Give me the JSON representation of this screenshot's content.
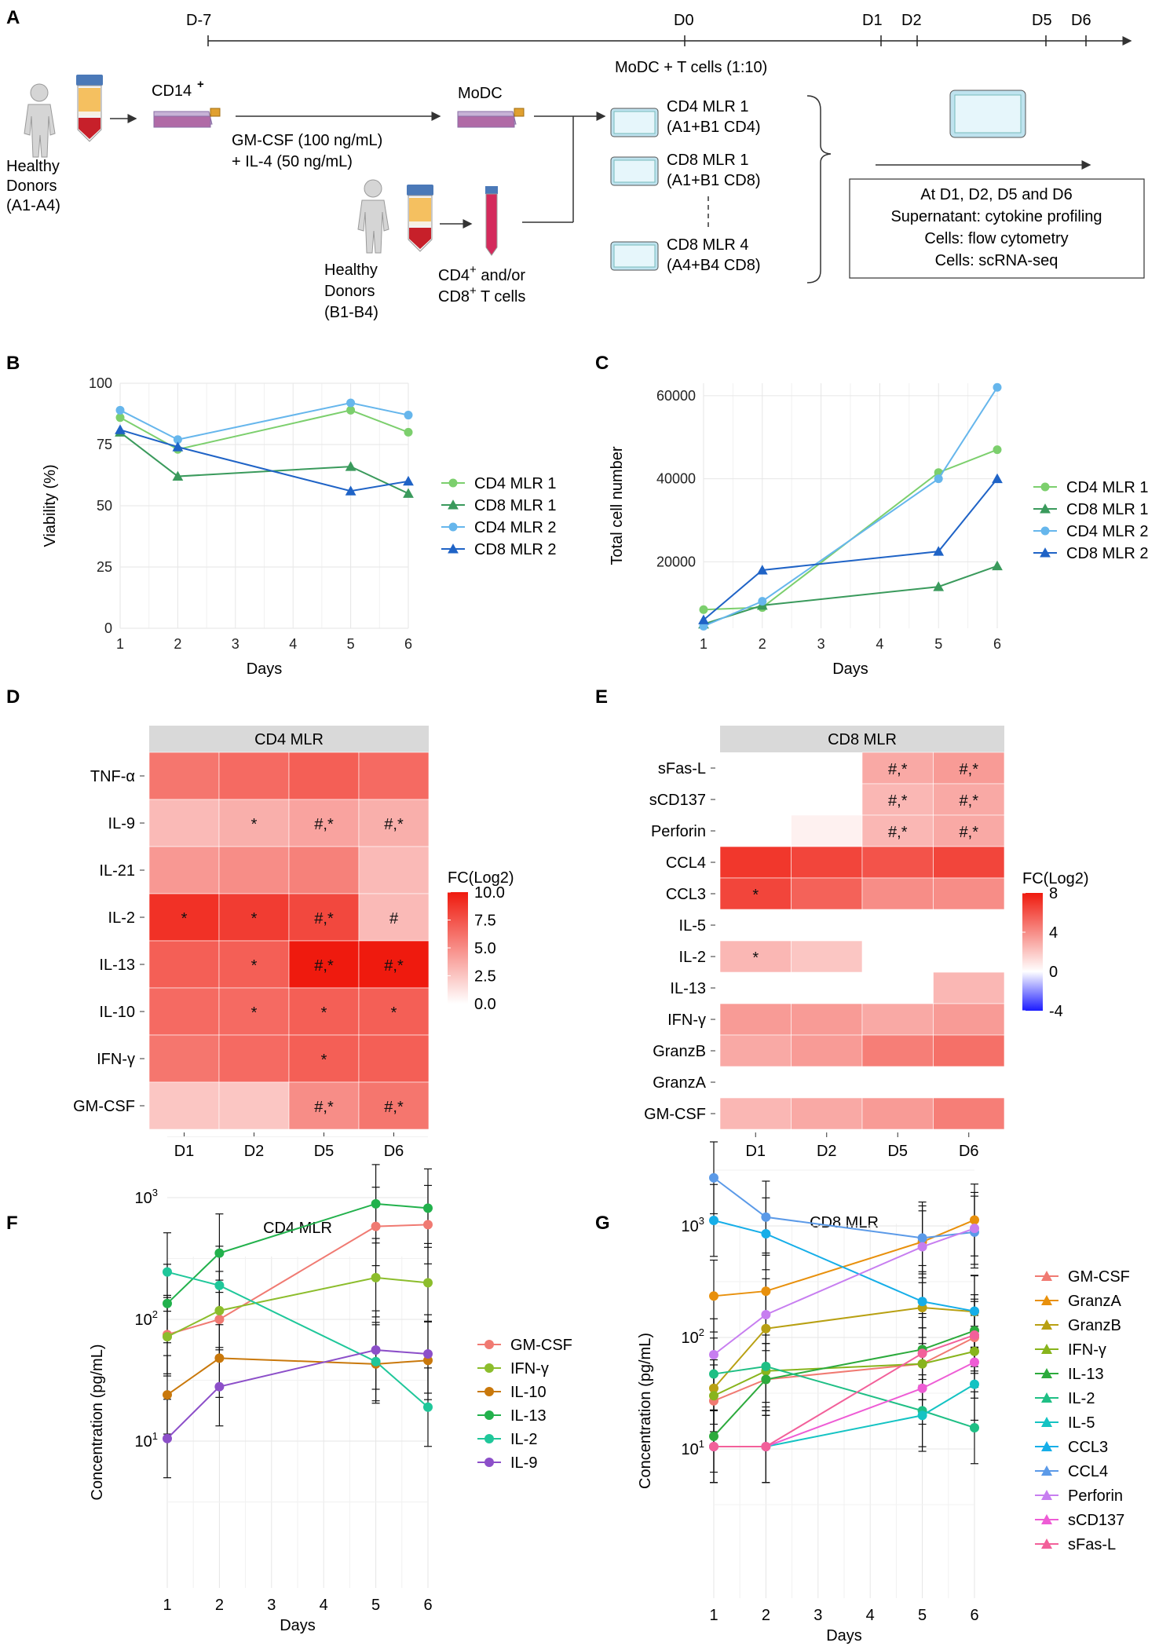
{
  "panels": {
    "A": "A",
    "B": "B",
    "C": "C",
    "D": "D",
    "E": "E",
    "F": "F",
    "G": "G"
  },
  "timeline": {
    "days": [
      "D-7",
      "D0",
      "D1",
      "D2",
      "D5",
      "D6"
    ],
    "coculture": "MoDC + T cells (1:10)"
  },
  "schematic": {
    "donors_a_line1": "Healthy",
    "donors_a_line2": "Donors",
    "donors_a_line3": "(A1-A4)",
    "cd14": "CD14",
    "cd14_sup": "+",
    "gmcsf": "GM-CSF (100 ng/mL)",
    "il4": "+ IL-4 (50 ng/mL)",
    "modc": "MoDC",
    "donors_b_line1": "Healthy",
    "donors_b_line2": "Donors",
    "donors_b_line3": "(B1-B4)",
    "tcells_line1": "CD4",
    "tcells_line1_rest": " and/or",
    "tcells_line2": "CD8",
    "tcells_line2_rest": " T cells",
    "sup_plus": "+",
    "mlr1_line1": "CD4 MLR 1",
    "mlr1_line2": "(A1+B1 CD4)",
    "mlr2_line1": "CD8 MLR 1",
    "mlr2_line2": "(A1+B1 CD8)",
    "mlr3_line1": "CD8 MLR 4",
    "mlr3_line2": "(A4+B4 CD8)",
    "box_lines": [
      "At D1, D2, D5 and D6",
      "Supernatant: cytokine profiling",
      "Cells: flow cytometry",
      "Cells: scRNA-seq"
    ]
  },
  "legend_bc": [
    "CD4 MLR 1",
    "CD8 MLR 1",
    "CD4 MLR 2",
    "CD8 MLR 2"
  ],
  "chart_data": [
    {
      "id": "B",
      "type": "line",
      "title": "",
      "xlabel": "Days",
      "ylabel": "Viability (%)",
      "x": [
        1,
        2,
        5,
        6
      ],
      "xlim": [
        1,
        6
      ],
      "xticks": [
        "1",
        "2",
        "3",
        "4",
        "5",
        "6"
      ],
      "ylim": [
        0,
        100
      ],
      "yticks": [
        "0",
        "25",
        "50",
        "75",
        "100"
      ],
      "series": [
        {
          "name": "CD4 MLR 1",
          "marker": "circle",
          "color": "#7ccf6d",
          "values": [
            86,
            73,
            89,
            80
          ]
        },
        {
          "name": "CD8 MLR 1",
          "marker": "triangle",
          "color": "#3a9a5c",
          "values": [
            80,
            62,
            66,
            55
          ]
        },
        {
          "name": "CD4 MLR 2",
          "marker": "circle",
          "color": "#66b6ec",
          "values": [
            89,
            77,
            92,
            87
          ]
        },
        {
          "name": "CD8 MLR 2",
          "marker": "triangle",
          "color": "#1f63c6",
          "values": [
            81,
            74,
            56,
            60
          ]
        }
      ],
      "legend": "right"
    },
    {
      "id": "C",
      "type": "line",
      "title": "",
      "xlabel": "Days",
      "ylabel": "Total cell number",
      "x": [
        1,
        2,
        5,
        6
      ],
      "xlim": [
        1,
        6
      ],
      "xticks": [
        "1",
        "2",
        "3",
        "4",
        "5",
        "6"
      ],
      "ylim": [
        4000,
        63000
      ],
      "yticks": [
        "20000",
        "40000",
        "60000"
      ],
      "series": [
        {
          "name": "CD4 MLR 1",
          "marker": "circle",
          "color": "#7ccf6d",
          "values": [
            8500,
            9000,
            41500,
            47000
          ]
        },
        {
          "name": "CD8 MLR 1",
          "marker": "triangle",
          "color": "#3a9a5c",
          "values": [
            5000,
            9500,
            14000,
            19000
          ]
        },
        {
          "name": "CD4 MLR 2",
          "marker": "circle",
          "color": "#66b6ec",
          "values": [
            4500,
            10500,
            40000,
            62000
          ]
        },
        {
          "name": "CD8 MLR 2",
          "marker": "triangle",
          "color": "#1f63c6",
          "values": [
            6000,
            18000,
            22500,
            40000
          ]
        }
      ],
      "legend": "right"
    },
    {
      "id": "D",
      "type": "heatmap",
      "title": "CD4 MLR",
      "columns": [
        "D1",
        "D2",
        "D5",
        "D6"
      ],
      "rows": [
        "TNF-α",
        "IL-9",
        "IL-21",
        "IL-2",
        "IL-13",
        "IL-10",
        "IFN-γ",
        "GM-CSF"
      ],
      "values": [
        [
          6,
          6.5,
          7,
          6.5
        ],
        [
          3,
          3.5,
          4,
          3.5
        ],
        [
          4.5,
          5,
          5.5,
          3
        ],
        [
          9,
          8.5,
          8,
          3
        ],
        [
          7,
          7,
          10,
          10
        ],
        [
          6.5,
          6.5,
          7,
          7
        ],
        [
          6,
          6.5,
          7,
          7
        ],
        [
          2.5,
          2.5,
          5,
          6
        ]
      ],
      "labels": [
        [
          "",
          "",
          "",
          ""
        ],
        [
          "",
          "*",
          "#,*",
          "#,*"
        ],
        [
          "",
          "",
          "",
          ""
        ],
        [
          "*",
          "*",
          "#,*",
          "#"
        ],
        [
          "",
          "*",
          "#,*",
          "#,*"
        ],
        [
          "",
          "*",
          "*",
          "*"
        ],
        [
          "",
          "",
          "*",
          ""
        ],
        [
          "",
          "",
          "#,*",
          "#,*"
        ]
      ],
      "legend_title": "FC(Log2)",
      "scale": [
        0,
        10
      ],
      "legend_ticks": [
        "10.0",
        "7.5",
        "5.0",
        "2.5",
        "0.0"
      ]
    },
    {
      "id": "E",
      "type": "heatmap",
      "title": "CD8 MLR",
      "columns": [
        "D1",
        "D2",
        "D5",
        "D6"
      ],
      "rows": [
        "sFas-L",
        "sCD137",
        "Perforin",
        "CCL4",
        "CCL3",
        "IL-5",
        "IL-2",
        "IL-13",
        "IFN-γ",
        "GranzB",
        "GranzA",
        "GM-CSF"
      ],
      "values": [
        [
          null,
          null,
          3,
          3.5
        ],
        [
          null,
          null,
          2.5,
          3
        ],
        [
          null,
          0.5,
          2.5,
          3
        ],
        [
          7,
          6.5,
          6,
          6.5
        ],
        [
          6.5,
          5.5,
          4,
          4
        ],
        [
          null,
          null,
          null,
          null
        ],
        [
          2.5,
          2,
          null,
          null
        ],
        [
          null,
          null,
          null,
          2.5
        ],
        [
          3.5,
          3.5,
          3,
          3.5
        ],
        [
          3,
          3.5,
          4.5,
          5
        ],
        [
          null,
          null,
          null,
          null
        ],
        [
          2.5,
          3,
          3.5,
          4.5
        ]
      ],
      "labels": [
        [
          "",
          "",
          "#,*",
          "#,*"
        ],
        [
          "",
          "",
          "#,*",
          "#,*"
        ],
        [
          "",
          "",
          "#,*",
          "#,*"
        ],
        [
          "",
          "",
          "",
          ""
        ],
        [
          "*",
          "",
          "",
          ""
        ],
        [
          "",
          "",
          "",
          ""
        ],
        [
          "*",
          "",
          "",
          ""
        ],
        [
          "",
          "",
          "",
          ""
        ],
        [
          "",
          "",
          "",
          ""
        ],
        [
          "",
          "",
          "",
          ""
        ],
        [
          "",
          "",
          "",
          ""
        ],
        [
          "",
          "",
          "",
          ""
        ]
      ],
      "legend_title": "FC(Log2)",
      "scale": [
        -4,
        8
      ],
      "legend_ticks": [
        "8",
        "4",
        "0",
        "-4"
      ]
    },
    {
      "id": "F",
      "type": "line",
      "title": "CD4 MLR",
      "yscale": "log",
      "xlabel": "Days",
      "ylabel": "Concentration (pg/mL)",
      "x": [
        1,
        2,
        5,
        6
      ],
      "xticks": [
        "1",
        "2",
        "3",
        "4",
        "5",
        "6"
      ],
      "series": [
        {
          "name": "GM-CSF",
          "color": "#f07a72",
          "values": [
            75,
            100,
            580,
            600
          ]
        },
        {
          "name": "IFN-γ",
          "color": "#8cbd2c",
          "values": [
            72,
            118,
            220,
            200
          ]
        },
        {
          "name": "IL-10",
          "color": "#c9780b",
          "values": [
            24,
            48,
            43,
            46
          ]
        },
        {
          "name": "IL-13",
          "color": "#22b14c",
          "values": [
            135,
            350,
            890,
            820
          ]
        },
        {
          "name": "IL-2",
          "color": "#1fc79a",
          "values": [
            245,
            190,
            45,
            19
          ]
        },
        {
          "name": "IL-9",
          "color": "#8c4fc9",
          "values": [
            10.5,
            28,
            56,
            52
          ]
        }
      ],
      "legend": "right"
    },
    {
      "id": "G",
      "type": "line",
      "title": "CD8 MLR",
      "yscale": "log",
      "xlabel": "Days",
      "ylabel": "Concentration (pg/mL)",
      "x": [
        1,
        2,
        5,
        6
      ],
      "xticks": [
        "1",
        "2",
        "3",
        "4",
        "5",
        "6"
      ],
      "series": [
        {
          "name": "GM-CSF",
          "color": "#f07a72",
          "values": [
            27,
            42,
            58,
            100
          ]
        },
        {
          "name": "GranzA",
          "color": "#e8900c",
          "values": [
            235,
            260,
            720,
            1130
          ]
        },
        {
          "name": "GranzB",
          "color": "#b8a012",
          "values": [
            35,
            120,
            185,
            170
          ]
        },
        {
          "name": "IFN-γ",
          "color": "#88b41c",
          "values": [
            30,
            50,
            58,
            75
          ]
        },
        {
          "name": "IL-13",
          "color": "#2caa3c",
          "values": [
            13,
            42,
            78,
            115
          ]
        },
        {
          "name": "IL-2",
          "color": "#1fbf85",
          "values": [
            47,
            55,
            22,
            15.5
          ]
        },
        {
          "name": "IL-5",
          "color": "#14c3c3",
          "values": [
            10.5,
            10.5,
            20,
            38
          ]
        },
        {
          "name": "CCL3",
          "color": "#16aee8",
          "values": [
            1120,
            850,
            210,
            172
          ]
        },
        {
          "name": "CCL4",
          "color": "#5b9ae8",
          "values": [
            2700,
            1200,
            780,
            880
          ]
        },
        {
          "name": "Perforin",
          "color": "#c77ef0",
          "values": [
            70,
            160,
            650,
            950
          ]
        },
        {
          "name": "sCD137",
          "color": "#ee5cd5",
          "values": [
            10.5,
            10.5,
            35,
            60
          ]
        },
        {
          "name": "sFas-L",
          "color": "#f2609a",
          "values": [
            10.5,
            10.5,
            72,
            105
          ]
        }
      ],
      "legend": "right"
    }
  ]
}
